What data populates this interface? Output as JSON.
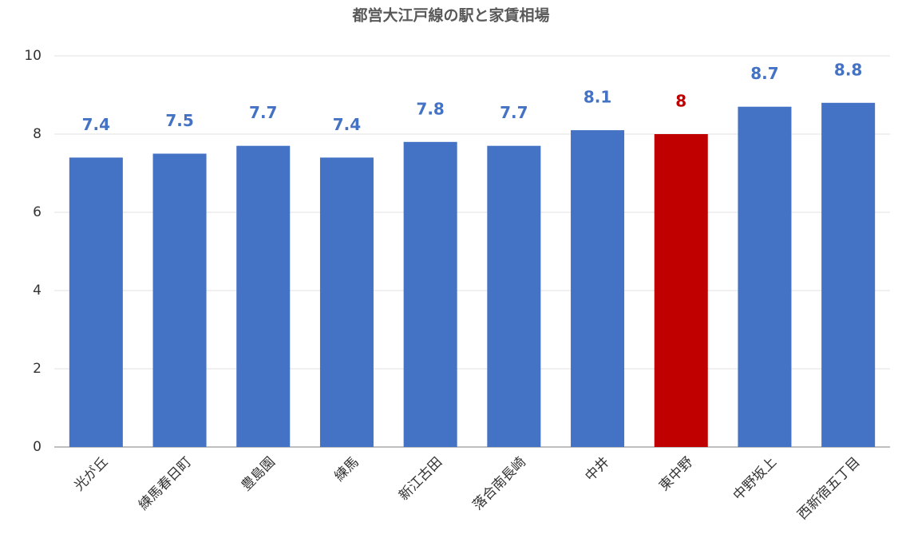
{
  "chart_data": {
    "type": "bar",
    "title": "都営大江戸線の駅と家賃相場",
    "categories": [
      "光が丘",
      "練馬春日町",
      "豊島園",
      "練馬",
      "新江古田",
      "落合南長崎",
      "中井",
      "東中野",
      "中野坂上",
      "西新宿五丁目"
    ],
    "values": [
      7.4,
      7.5,
      7.7,
      7.4,
      7.8,
      7.7,
      8.1,
      8,
      8.7,
      8.8
    ],
    "colors": [
      "#4472c4",
      "#4472c4",
      "#4472c4",
      "#4472c4",
      "#4472c4",
      "#4472c4",
      "#4472c4",
      "#c00000",
      "#4472c4",
      "#4472c4"
    ],
    "ylim": [
      0,
      10
    ],
    "yticks": [
      0,
      2,
      4,
      6,
      8,
      10
    ],
    "grid": true
  }
}
